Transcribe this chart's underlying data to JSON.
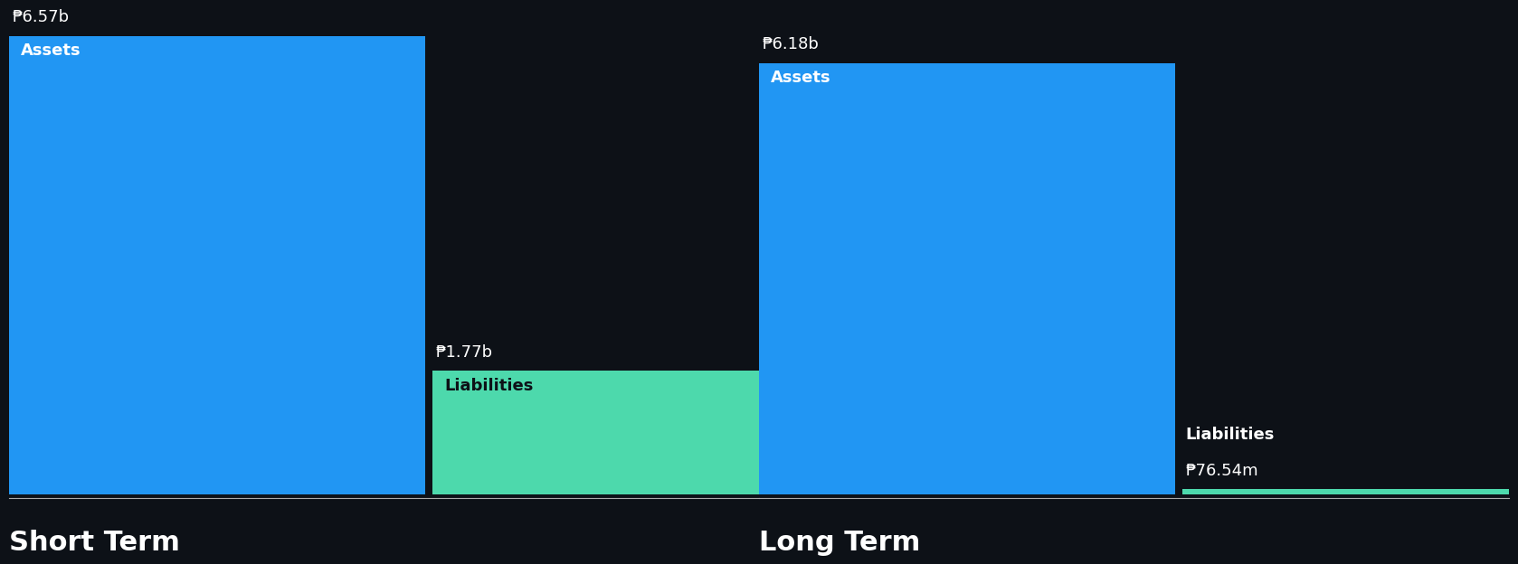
{
  "background_color": "#0d1117",
  "short_term": {
    "assets_value": 6.57,
    "assets_label": "₱6.57b",
    "assets_color": "#2196f3",
    "liabilities_value": 1.77,
    "liabilities_label": "₱1.77b",
    "liabilities_color": "#4dd9ac",
    "assets_text": "Assets",
    "liabilities_text": "Liabilities",
    "section_label": "Short Term"
  },
  "long_term": {
    "assets_value": 6.18,
    "assets_label": "₱6.18b",
    "assets_color": "#2196f3",
    "liabilities_value": 0.07654,
    "liabilities_label": "₱76.54m",
    "liabilities_color": "#4dd9ac",
    "assets_text": "Assets",
    "liabilities_text": "Liabilities",
    "section_label": "Long Term"
  },
  "max_value": 6.57,
  "label_fontsize": 13,
  "section_label_fontsize": 22,
  "value_label_fontsize": 13,
  "inner_label_fontsize": 13
}
